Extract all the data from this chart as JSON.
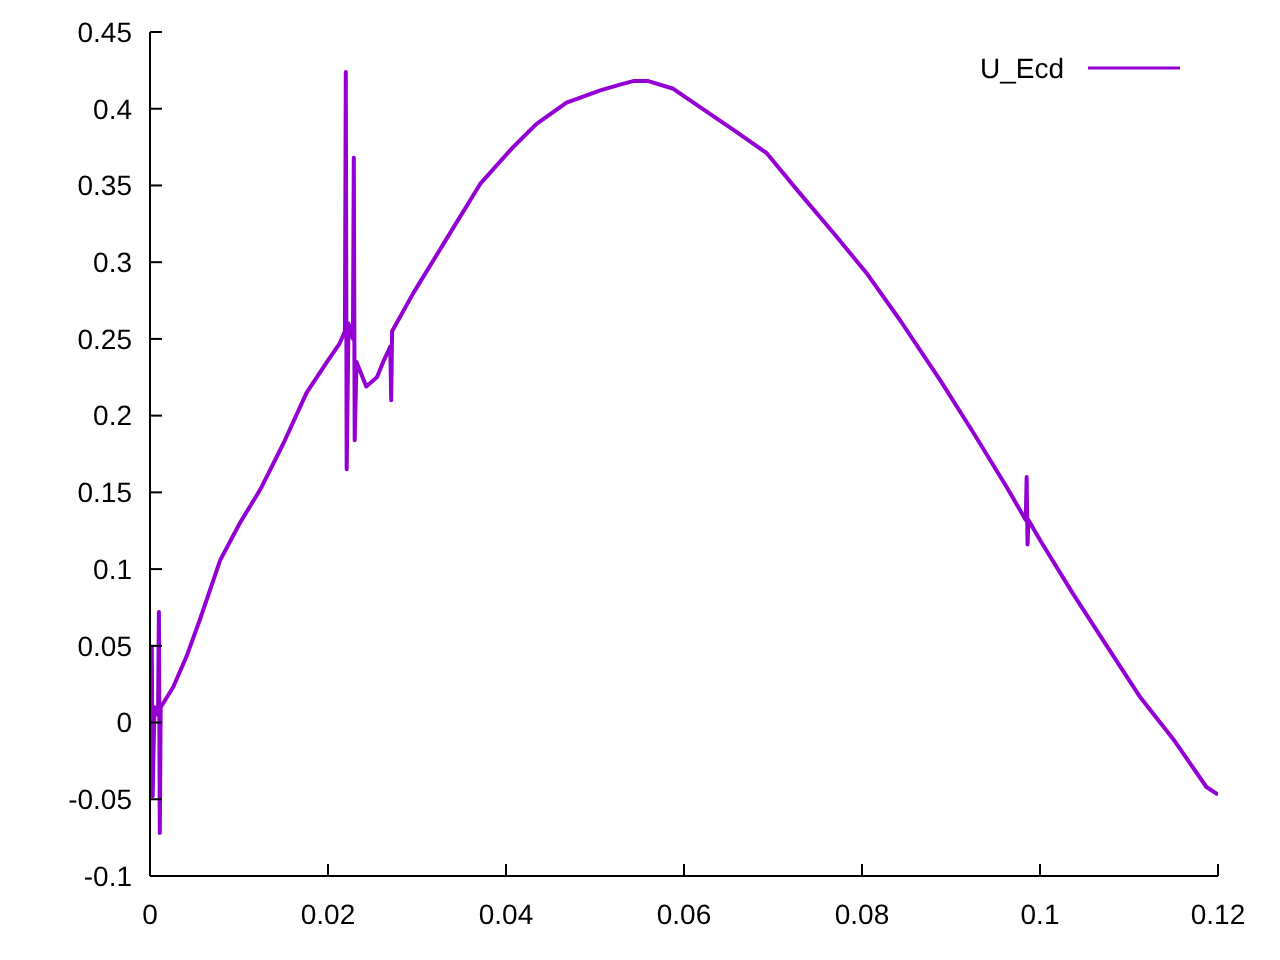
{
  "chart_data": {
    "type": "line",
    "x": [
      0,
      0.0002,
      0.0003,
      0.0005,
      0.0009,
      0.001,
      0.0011,
      0.0012,
      0.0026,
      0.0041,
      0.0056,
      0.0079,
      0.0101,
      0.0124,
      0.015,
      0.0176,
      0.02,
      0.0213,
      0.0219,
      0.022,
      0.0221,
      0.0223,
      0.0228,
      0.0229,
      0.023,
      0.0232,
      0.0243,
      0.0255,
      0.0262,
      0.027,
      0.0271,
      0.0272,
      0.0296,
      0.0333,
      0.0371,
      0.0408,
      0.0434,
      0.0468,
      0.0506,
      0.053,
      0.0543,
      0.056,
      0.0588,
      0.0618,
      0.0656,
      0.0693,
      0.073,
      0.0768,
      0.0805,
      0.0843,
      0.0888,
      0.0925,
      0.0962,
      0.0984,
      0.0985,
      0.0986,
      0.0987,
      0.1,
      0.1037,
      0.1075,
      0.1112,
      0.115,
      0.1187,
      0.12
    ],
    "series": [
      {
        "name": "U_Ecd",
        "color": "#9400d3",
        "values": [
          0.03,
          0.049,
          -0.048,
          0.01,
          0.005,
          0.072,
          -0.072,
          0.01,
          0.023,
          0.043,
          0.067,
          0.106,
          0.13,
          0.152,
          0.182,
          0.215,
          0.236,
          0.247,
          0.255,
          0.424,
          0.165,
          0.26,
          0.25,
          0.368,
          0.184,
          0.235,
          0.219,
          0.225,
          0.235,
          0.245,
          0.21,
          0.255,
          0.28,
          0.315,
          0.351,
          0.375,
          0.39,
          0.404,
          0.412,
          0.416,
          0.418,
          0.418,
          0.413,
          0.401,
          0.386,
          0.371,
          0.345,
          0.319,
          0.293,
          0.262,
          0.223,
          0.189,
          0.154,
          0.132,
          0.16,
          0.116,
          0.132,
          0.119,
          0.084,
          0.05,
          0.017,
          -0.011,
          -0.042,
          -0.047
        ]
      }
    ],
    "xlim": [
      0,
      0.12
    ],
    "xticks": [
      0,
      0.02,
      0.04,
      0.06,
      0.08,
      0.1,
      0.12
    ],
    "ylim": [
      -0.1,
      0.45
    ],
    "yticks": [
      -0.1,
      -0.05,
      0,
      0.05,
      0.1,
      0.15,
      0.2,
      0.25,
      0.3,
      0.35,
      0.4,
      0.45
    ],
    "legend": "top right",
    "marker": "none",
    "line_style": "solid"
  }
}
